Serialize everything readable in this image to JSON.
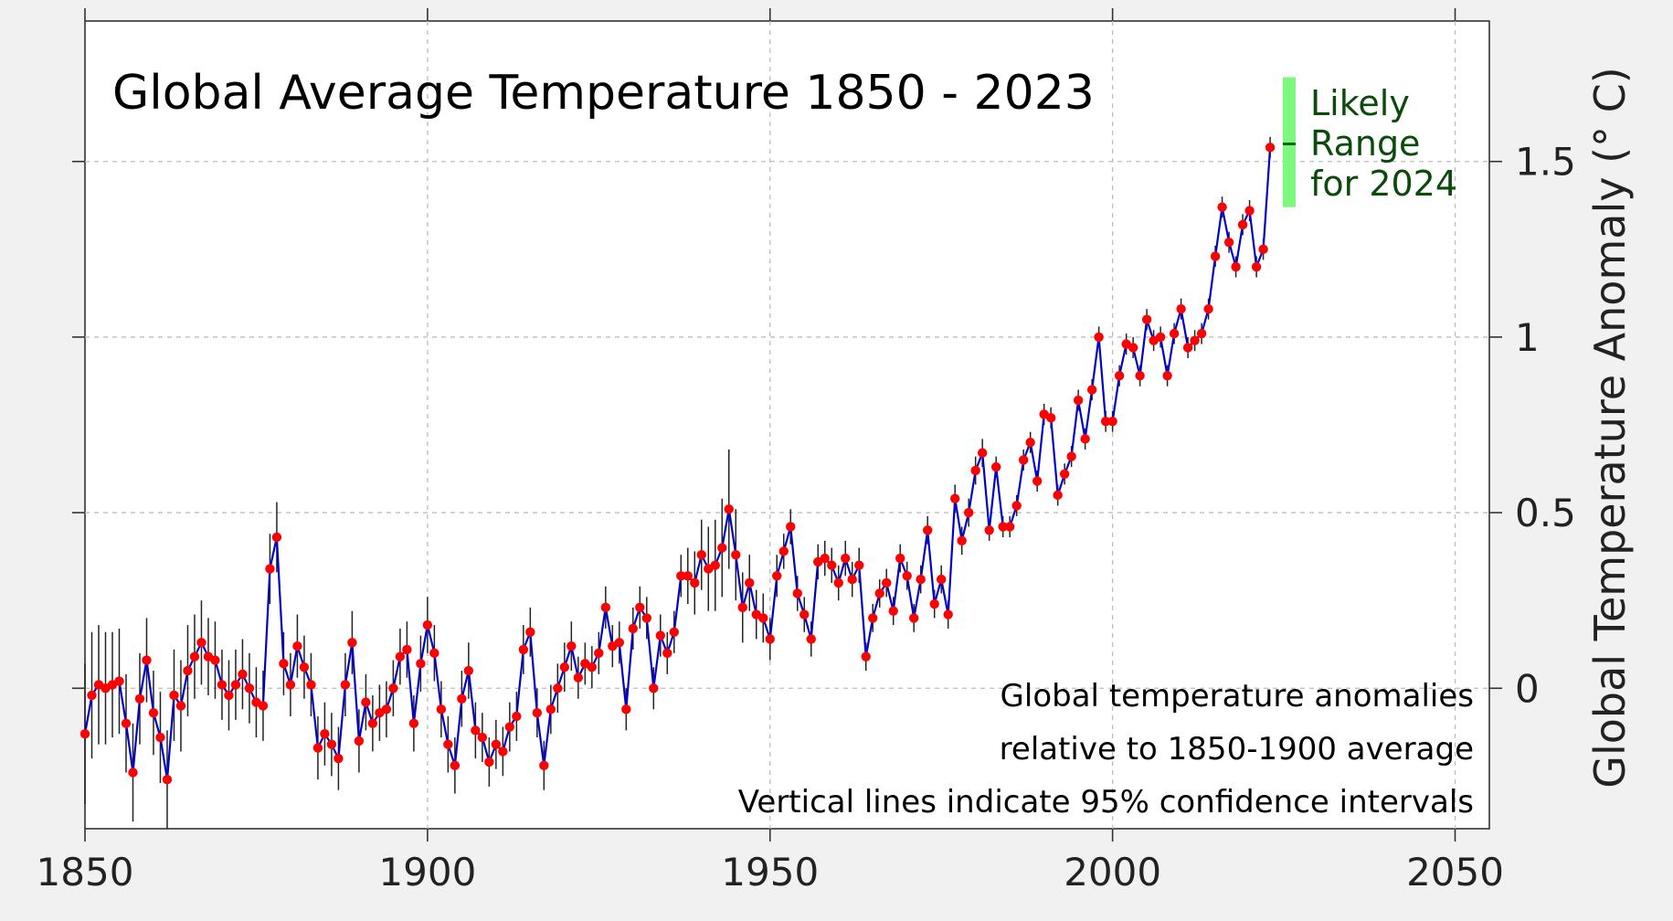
{
  "chart_data": {
    "type": "line",
    "title": "Global Average Temperature 1850 - 2023",
    "ylabel": "Global Temperature Anomaly (° C)",
    "xlabel": "",
    "xlim": [
      1850,
      2055
    ],
    "ylim": [
      -0.4,
      1.9
    ],
    "x_ticks": [
      1850,
      1900,
      1950,
      2000,
      2050
    ],
    "x_tick_labels": [
      "1850",
      "1900",
      "1950",
      "2000",
      "2050"
    ],
    "y_ticks": [
      0,
      0.5,
      1,
      1.5
    ],
    "y_tick_labels": [
      "0",
      "0.5",
      "1",
      "1.5"
    ],
    "y_axis_position": "right",
    "grid": true,
    "line_color": "#0000cc",
    "marker_color": "#ff0000",
    "ci_color": "#222222",
    "x": [
      1850,
      1851,
      1852,
      1853,
      1854,
      1855,
      1856,
      1857,
      1858,
      1859,
      1860,
      1861,
      1862,
      1863,
      1864,
      1865,
      1866,
      1867,
      1868,
      1869,
      1870,
      1871,
      1872,
      1873,
      1874,
      1875,
      1876,
      1877,
      1878,
      1879,
      1880,
      1881,
      1882,
      1883,
      1884,
      1885,
      1886,
      1887,
      1888,
      1889,
      1890,
      1891,
      1892,
      1893,
      1894,
      1895,
      1896,
      1897,
      1898,
      1899,
      1900,
      1901,
      1902,
      1903,
      1904,
      1905,
      1906,
      1907,
      1908,
      1909,
      1910,
      1911,
      1912,
      1913,
      1914,
      1915,
      1916,
      1917,
      1918,
      1919,
      1920,
      1921,
      1922,
      1923,
      1924,
      1925,
      1926,
      1927,
      1928,
      1929,
      1930,
      1931,
      1932,
      1933,
      1934,
      1935,
      1936,
      1937,
      1938,
      1939,
      1940,
      1941,
      1942,
      1943,
      1944,
      1945,
      1946,
      1947,
      1948,
      1949,
      1950,
      1951,
      1952,
      1953,
      1954,
      1955,
      1956,
      1957,
      1958,
      1959,
      1960,
      1961,
      1962,
      1963,
      1964,
      1965,
      1966,
      1967,
      1968,
      1969,
      1970,
      1971,
      1972,
      1973,
      1974,
      1975,
      1976,
      1977,
      1978,
      1979,
      1980,
      1981,
      1982,
      1983,
      1984,
      1985,
      1986,
      1987,
      1988,
      1989,
      1990,
      1991,
      1992,
      1993,
      1994,
      1995,
      1996,
      1997,
      1998,
      1999,
      2000,
      2001,
      2002,
      2003,
      2004,
      2005,
      2006,
      2007,
      2008,
      2009,
      2010,
      2011,
      2012,
      2013,
      2014,
      2015,
      2016,
      2017,
      2018,
      2019,
      2020,
      2021,
      2022,
      2023
    ],
    "values": [
      -0.13,
      -0.02,
      0.01,
      0.0,
      0.01,
      0.02,
      -0.1,
      -0.24,
      -0.03,
      0.08,
      -0.07,
      -0.14,
      -0.26,
      -0.02,
      -0.05,
      0.05,
      0.09,
      0.13,
      0.09,
      0.08,
      0.01,
      -0.02,
      0.01,
      0.04,
      0.0,
      -0.04,
      -0.05,
      0.34,
      0.43,
      0.07,
      0.01,
      0.12,
      0.06,
      0.01,
      -0.17,
      -0.13,
      -0.16,
      -0.2,
      0.01,
      0.13,
      -0.15,
      -0.04,
      -0.1,
      -0.07,
      -0.06,
      0.0,
      0.09,
      0.11,
      -0.1,
      0.07,
      0.18,
      0.1,
      -0.06,
      -0.16,
      -0.22,
      -0.03,
      0.05,
      -0.12,
      -0.14,
      -0.21,
      -0.16,
      -0.18,
      -0.11,
      -0.08,
      0.11,
      0.16,
      -0.07,
      -0.22,
      -0.06,
      0.0,
      0.06,
      0.12,
      0.03,
      0.07,
      0.06,
      0.1,
      0.23,
      0.12,
      0.13,
      -0.06,
      0.17,
      0.23,
      0.2,
      0.0,
      0.15,
      0.1,
      0.16,
      0.32,
      0.32,
      0.3,
      0.38,
      0.34,
      0.35,
      0.4,
      0.51,
      0.38,
      0.23,
      0.3,
      0.21,
      0.2,
      0.14,
      0.32,
      0.39,
      0.46,
      0.27,
      0.21,
      0.14,
      0.36,
      0.37,
      0.35,
      0.3,
      0.37,
      0.31,
      0.35,
      0.09,
      0.2,
      0.27,
      0.3,
      0.22,
      0.37,
      0.32,
      0.2,
      0.31,
      0.45,
      0.24,
      0.31,
      0.21,
      0.54,
      0.42,
      0.5,
      0.62,
      0.67,
      0.45,
      0.63,
      0.46,
      0.46,
      0.52,
      0.65,
      0.7,
      0.59,
      0.78,
      0.77,
      0.55,
      0.61,
      0.66,
      0.82,
      0.71,
      0.85,
      1.0,
      0.76,
      0.76,
      0.89,
      0.98,
      0.97,
      0.89,
      1.05,
      0.99,
      1.0,
      0.89,
      1.01,
      1.08,
      0.97,
      0.99,
      1.01,
      1.08,
      1.23,
      1.37,
      1.27,
      1.2,
      1.32,
      1.36,
      1.2,
      1.25,
      1.54
    ],
    "ci_half_width": [
      0.2,
      0.18,
      0.17,
      0.16,
      0.15,
      0.15,
      0.14,
      0.14,
      0.13,
      0.12,
      0.12,
      0.13,
      0.14,
      0.13,
      0.13,
      0.13,
      0.12,
      0.12,
      0.11,
      0.11,
      0.1,
      0.1,
      0.1,
      0.1,
      0.1,
      0.1,
      0.1,
      0.1,
      0.1,
      0.09,
      0.09,
      0.09,
      0.09,
      0.09,
      0.09,
      0.09,
      0.09,
      0.09,
      0.09,
      0.09,
      0.09,
      0.08,
      0.08,
      0.08,
      0.08,
      0.08,
      0.08,
      0.08,
      0.08,
      0.08,
      0.08,
      0.08,
      0.08,
      0.08,
      0.08,
      0.08,
      0.08,
      0.08,
      0.07,
      0.07,
      0.07,
      0.07,
      0.07,
      0.07,
      0.07,
      0.07,
      0.07,
      0.07,
      0.07,
      0.07,
      0.07,
      0.07,
      0.06,
      0.06,
      0.06,
      0.06,
      0.06,
      0.06,
      0.06,
      0.06,
      0.06,
      0.06,
      0.06,
      0.06,
      0.06,
      0.06,
      0.06,
      0.06,
      0.08,
      0.09,
      0.1,
      0.12,
      0.13,
      0.14,
      0.17,
      0.13,
      0.1,
      0.08,
      0.07,
      0.07,
      0.06,
      0.06,
      0.05,
      0.05,
      0.05,
      0.05,
      0.05,
      0.05,
      0.05,
      0.05,
      0.05,
      0.05,
      0.05,
      0.05,
      0.04,
      0.04,
      0.04,
      0.04,
      0.04,
      0.04,
      0.04,
      0.04,
      0.04,
      0.04,
      0.04,
      0.04,
      0.04,
      0.04,
      0.04,
      0.04,
      0.04,
      0.04,
      0.03,
      0.03,
      0.03,
      0.03,
      0.03,
      0.03,
      0.03,
      0.03,
      0.03,
      0.03,
      0.03,
      0.03,
      0.03,
      0.03,
      0.03,
      0.03,
      0.03,
      0.03,
      0.03,
      0.03,
      0.03,
      0.03,
      0.03,
      0.03,
      0.03,
      0.03,
      0.03,
      0.03,
      0.03,
      0.03,
      0.03,
      0.03,
      0.03,
      0.03,
      0.03,
      0.03,
      0.03,
      0.03,
      0.03,
      0.03,
      0.03,
      0.03,
      0.03,
      0.04
    ],
    "likely_range_2024": {
      "label_lines": [
        "Likely",
        "Range",
        "for 2024"
      ],
      "low": 1.37,
      "high": 1.74,
      "central": 1.55,
      "bar_color": "#7ef77e",
      "central_color": "#006600",
      "text_color": "#0b4a0b"
    },
    "annotations": [
      "Global temperature anomalies",
      "relative to 1850-1900 average",
      "Vertical lines indicate 95% confidence intervals"
    ]
  }
}
